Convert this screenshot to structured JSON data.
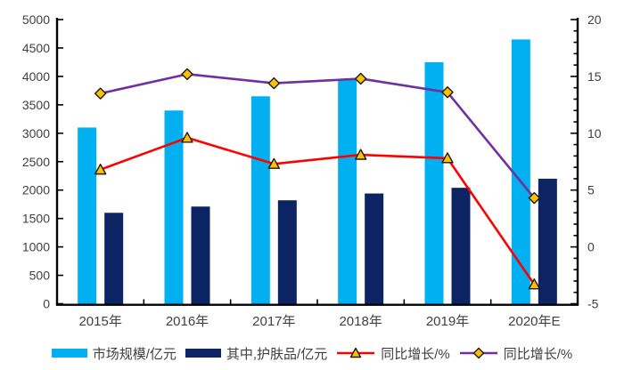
{
  "chart_data": {
    "type": "combo",
    "categories": [
      "2015年",
      "2016年",
      "2017年",
      "2018年",
      "2019年",
      "2020年E"
    ],
    "series": [
      {
        "name": "市场规模/亿元",
        "type": "bar",
        "axis": "left",
        "color": "#00b0f0",
        "values": [
          3100,
          3400,
          3650,
          3950,
          4250,
          4650
        ]
      },
      {
        "name": "其中,护肤品/亿元",
        "type": "bar",
        "axis": "left",
        "color": "#0d2464",
        "values": [
          1600,
          1710,
          1820,
          1940,
          2040,
          2200
        ]
      },
      {
        "name": "同比增长/%",
        "type": "line",
        "axis": "right",
        "color": "#ff0000",
        "marker": "triangle",
        "marker_fill": "#ffc000",
        "marker_stroke": "#1a1a1a",
        "values": [
          6.8,
          9.6,
          7.3,
          8.1,
          7.8,
          -3.3
        ]
      },
      {
        "name": "同比增长/%",
        "type": "line",
        "axis": "right",
        "color": "#7030a0",
        "marker": "diamond",
        "marker_fill": "#ffc000",
        "marker_stroke": "#1a1a1a",
        "values": [
          13.5,
          15.2,
          14.4,
          14.8,
          13.6,
          4.3
        ]
      }
    ],
    "left_axis": {
      "min": 0,
      "max": 5000,
      "step": 500,
      "tick_labels": [
        "0",
        "500",
        "1000",
        "1500",
        "2000",
        "2500",
        "3000",
        "3500",
        "4000",
        "4500",
        "5000"
      ]
    },
    "right_axis": {
      "min": -5,
      "max": 20,
      "step": 5,
      "minor_step": 1,
      "tick_labels": [
        "-5",
        "0",
        "5",
        "10",
        "15",
        "20"
      ]
    },
    "grid": false,
    "legend_position": "bottom",
    "title": "",
    "xlabel": "",
    "ylabel": ""
  },
  "style": {
    "axis_color": "#000000",
    "text_color": "#404040",
    "background": "#ffffff"
  }
}
